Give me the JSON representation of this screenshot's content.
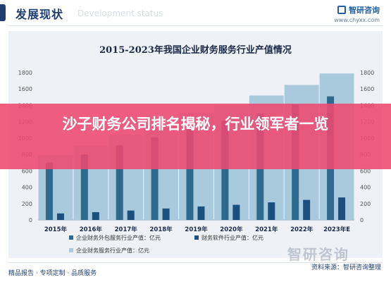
{
  "header": {
    "title": "发展现状",
    "subtitle": "Development status",
    "brand_name": "智研咨询",
    "brand_url": "www.chyxx.com"
  },
  "banner": {
    "text": "沙子财务公司排名揭秘，行业领军者一览"
  },
  "footer": {
    "left": "精品报告 · 专项定制 · 品质服务",
    "source": "资料来源：智研咨询整理"
  },
  "watermark": "智研咨询",
  "chart_data": {
    "type": "bar",
    "title": "2015-2023年我国企业财务服务行业产值情况",
    "categories": [
      "2015年",
      "2016年",
      "2017年",
      "2018年",
      "2019年",
      "2020年",
      "2021年",
      "2022年",
      "2023年E"
    ],
    "ylim": [
      0,
      1800
    ],
    "yticks": [
      0,
      200,
      400,
      600,
      800,
      1000,
      1200,
      1400,
      1600,
      1800
    ],
    "series": [
      {
        "name": "企业财务服务行业产值：亿元",
        "values": [
          790,
          900,
          1040,
          1160,
          1310,
          1400,
          1520,
          1650,
          1790
        ],
        "color": "#a9c9dd"
      },
      {
        "name": "企业财务外包服务行业产值：亿元",
        "values": [
          700,
          800,
          910,
          1010,
          1140,
          1210,
          1300,
          1410,
          1510
        ],
        "color": "#2d6a8e"
      },
      {
        "name": "财务软件行业产值：亿元",
        "values": [
          80,
          95,
          115,
          140,
          165,
          185,
          215,
          245,
          275
        ],
        "color": "#1b4f7e"
      }
    ],
    "legend_placement": "bottom-left",
    "grid": false
  }
}
